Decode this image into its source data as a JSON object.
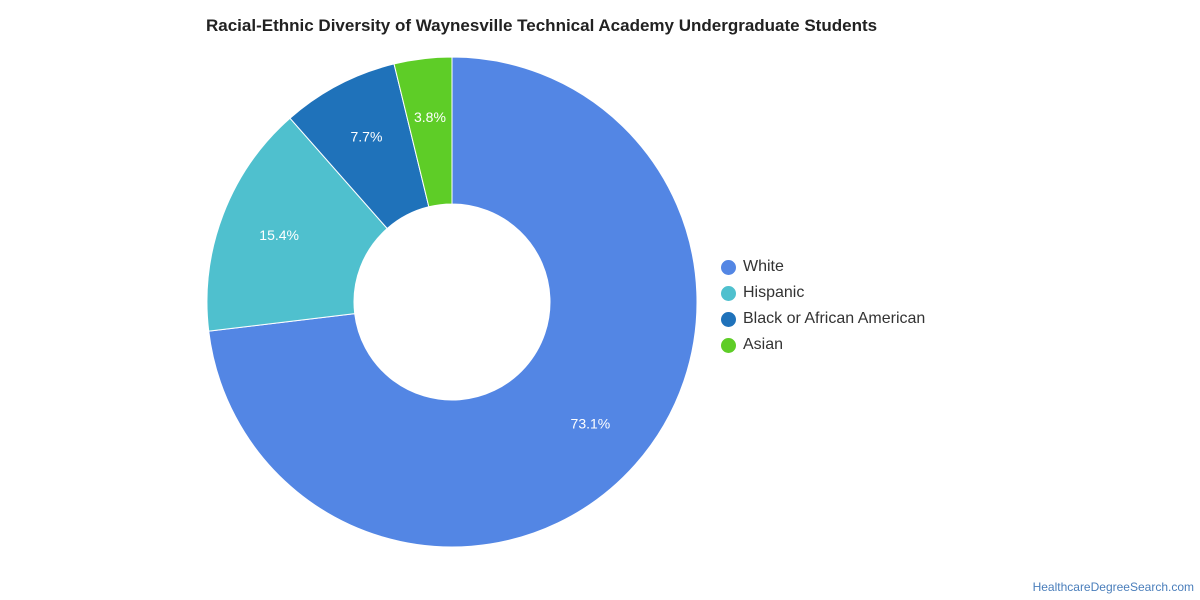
{
  "chart_data": {
    "type": "pie",
    "title": "Racial-Ethnic Diversity of Waynesville Technical Academy Undergraduate Students",
    "legend_position": "right",
    "slices": [
      {
        "label": "White",
        "value": 73.1,
        "display": "73.1%",
        "color": "#5386e4"
      },
      {
        "label": "Hispanic",
        "value": 15.4,
        "display": "15.4%",
        "color": "#4fc0ce"
      },
      {
        "label": "Black or African American",
        "value": 7.7,
        "display": "7.7%",
        "color": "#1f72ba"
      },
      {
        "label": "Asian",
        "value": 3.8,
        "display": "3.8%",
        "color": "#5ecd27"
      }
    ]
  },
  "footer": {
    "source": "HealthcareDegreeSearch.com"
  }
}
